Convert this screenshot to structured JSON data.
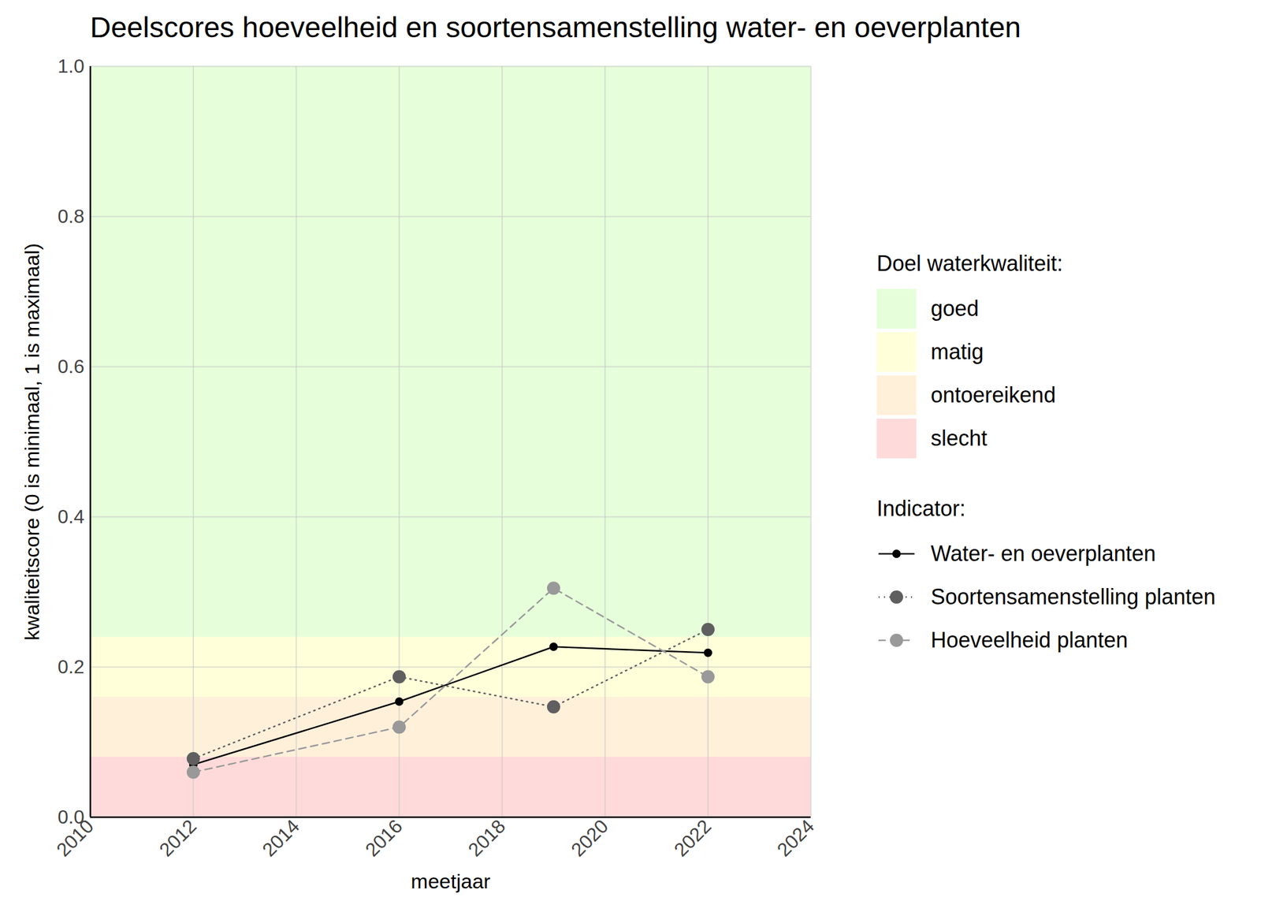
{
  "chart_data": {
    "type": "line",
    "title": "Deelscores hoeveelheid en soortensamenstelling water- en oeverplanten",
    "x_label": "meetjaar",
    "y_label": "kwaliteitscore (0 is minimaal, 1 is maximaal)",
    "x": [
      2012,
      2016,
      2019,
      2022
    ],
    "xlim": [
      2010,
      2024
    ],
    "xticks": [
      2010,
      2012,
      2014,
      2016,
      2018,
      2020,
      2022,
      2024
    ],
    "ylim": [
      0,
      1
    ],
    "yticks": [
      {
        "value": 0,
        "label": "0.0"
      },
      0.2,
      0.4,
      0.6,
      0.8,
      {
        "value": 1,
        "label": "1.0"
      }
    ],
    "grid": true,
    "legend": "right",
    "band_legend_title": "Doel waterkwaliteit:",
    "series_legend_title": "Indicator:",
    "bands": [
      {
        "name": "goed",
        "color": "#e6ffda",
        "from": 0.24,
        "to": 1
      },
      {
        "name": "matig",
        "color": "#ffffda",
        "from": 0.16,
        "to": 0.24
      },
      {
        "name": "ontoereikend",
        "color": "#fff0da",
        "from": 0.08,
        "to": 0.16
      },
      {
        "name": "slecht",
        "color": "#ffdada",
        "from": 0,
        "to": 0.08
      }
    ],
    "series": [
      {
        "name": "Water- en oeverplanten",
        "color": "#000000",
        "marker": "circle",
        "line_style": "solid",
        "values": [
          0.07,
          0.154,
          0.227,
          0.219
        ]
      },
      {
        "name": "Soortensamenstelling planten",
        "color": "#5f5f5f",
        "marker": "circle",
        "line_style": "dotted",
        "values": [
          0.078,
          0.187,
          0.147,
          0.25
        ]
      },
      {
        "name": "Hoeveelheid planten",
        "color": "#999999",
        "marker": "circle",
        "line_style": "dashed",
        "values": [
          0.06,
          0.12,
          0.305,
          0.187
        ]
      }
    ]
  }
}
